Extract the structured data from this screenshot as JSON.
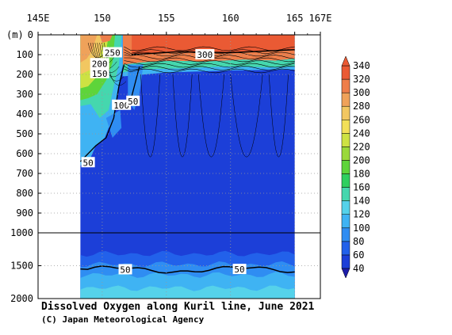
{
  "chart_data": {
    "type": "heatmap",
    "title": "Dissolved Oxygen along Kuril line, June 2021",
    "copyright": "(C) Japan Meteorological Agency",
    "x_axis": {
      "unit": "E",
      "range": [
        145,
        167
      ],
      "ticks": [
        {
          "value": 145,
          "label": "145E"
        },
        {
          "value": 150,
          "label": "150"
        },
        {
          "value": 155,
          "label": "155"
        },
        {
          "value": 160,
          "label": "160"
        },
        {
          "value": 165,
          "label": "165"
        },
        {
          "value": 167,
          "label": "167E"
        }
      ],
      "position": "top"
    },
    "y_axis": {
      "unit_label": "(m)",
      "reversed": true,
      "upper_ticks": [
        0,
        100,
        200,
        300,
        400,
        500,
        600,
        700,
        800,
        900,
        1000
      ],
      "lower_ticks": [
        1500,
        2000
      ],
      "break_depth": 1000,
      "ranges": [
        [
          0,
          1000
        ],
        [
          1000,
          2000
        ]
      ]
    },
    "grid": true,
    "colorbar": {
      "min": 40,
      "max": 340,
      "step": 20,
      "levels": [
        40,
        60,
        80,
        100,
        120,
        140,
        160,
        180,
        200,
        220,
        240,
        260,
        280,
        300,
        320,
        340
      ],
      "colors": [
        "#1c3fd8",
        "#2261ea",
        "#2f8df2",
        "#3fb3f3",
        "#55d2ea",
        "#45d7ae",
        "#2fcf5f",
        "#5ed43a",
        "#9ad93a",
        "#cde243",
        "#f2e058",
        "#f2c761",
        "#efa25a",
        "#ee7e4a",
        "#ea5a34"
      ],
      "position": "right"
    },
    "section": {
      "start_lon": 148.3,
      "end_lon": 165.0
    },
    "contour_labels": [
      {
        "text": "250",
        "lon": 150.8,
        "depth": 90
      },
      {
        "text": "200",
        "lon": 149.8,
        "depth": 145
      },
      {
        "text": "150",
        "lon": 149.8,
        "depth": 195
      },
      {
        "text": "100",
        "lon": 151.5,
        "depth": 355
      },
      {
        "text": "50",
        "lon": 152.4,
        "depth": 335
      },
      {
        "text": "50",
        "lon": 148.9,
        "depth": 645
      },
      {
        "text": "300",
        "lon": 158.0,
        "depth": 100
      },
      {
        "text": "50",
        "lon": 151.8,
        "depth": 1560
      },
      {
        "text": "50",
        "lon": 160.7,
        "depth": 1555
      }
    ]
  }
}
